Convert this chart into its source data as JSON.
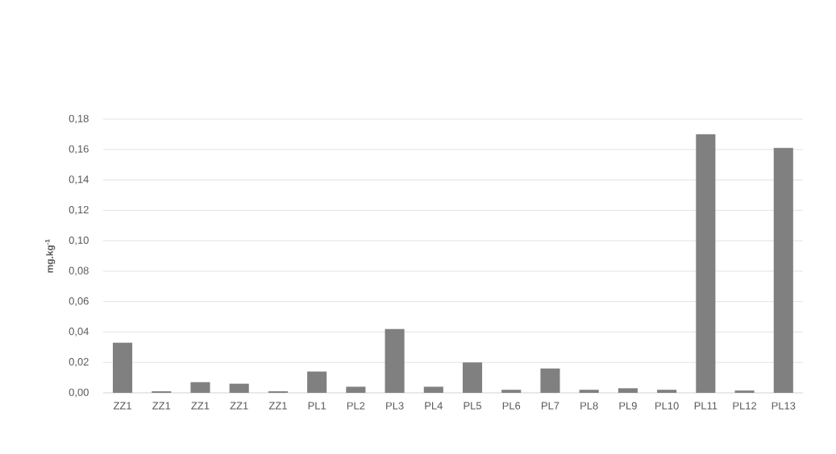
{
  "chart_data": {
    "type": "bar",
    "ylabel": "mg.kg$^{-1}$",
    "categories": [
      "ZZ1",
      "ZZ1",
      "ZZ1",
      "ZZ1",
      "ZZ1",
      "PL1",
      "PL2",
      "PL3",
      "PL4",
      "PL5",
      "PL6",
      "PL7",
      "PL8",
      "PL9",
      "PL10",
      "PL11",
      "PL12",
      "PL13"
    ],
    "values": [
      0.033,
      0.001,
      0.007,
      0.006,
      0.001,
      0.014,
      0.004,
      0.042,
      0.004,
      0.02,
      0.002,
      0.016,
      0.002,
      0.003,
      0.002,
      0.17,
      0.0015,
      0.161
    ],
    "color": "#808080",
    "ylim": [
      0,
      0.18
    ],
    "yticks": [
      {
        "value": 0,
        "label": "0,00"
      },
      {
        "value": 0.02,
        "label": "0,02"
      },
      {
        "value": 0.04,
        "label": "0,04"
      },
      {
        "value": 0.06,
        "label": "0,06"
      },
      {
        "value": 0.08,
        "label": "0,08"
      },
      {
        "value": 0.1,
        "label": "0,10"
      },
      {
        "value": 0.12,
        "label": "0,12"
      },
      {
        "value": 0.14,
        "label": "0,14"
      },
      {
        "value": 0.16,
        "label": "0,16"
      },
      {
        "value": 0.18,
        "label": "0,18"
      }
    ],
    "grid": "y"
  }
}
